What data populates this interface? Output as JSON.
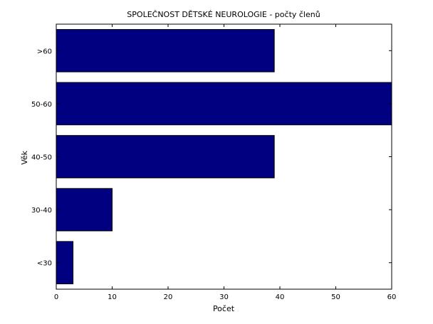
{
  "chart_data": {
    "type": "bar",
    "orientation": "horizontal",
    "title": "SPOLEČNOST DĚTSKÉ NEUROLOGIE - počty členů",
    "xlabel": "Počet",
    "ylabel": "Věk",
    "categories": [
      "<30",
      "30-40",
      "40-50",
      "50-60",
      ">60"
    ],
    "values": [
      3,
      10,
      39,
      60,
      39
    ],
    "xlim": [
      0,
      60
    ],
    "xticks": [
      0,
      10,
      20,
      30,
      40,
      50,
      60
    ],
    "grid": false,
    "bar_color": "#000080"
  }
}
